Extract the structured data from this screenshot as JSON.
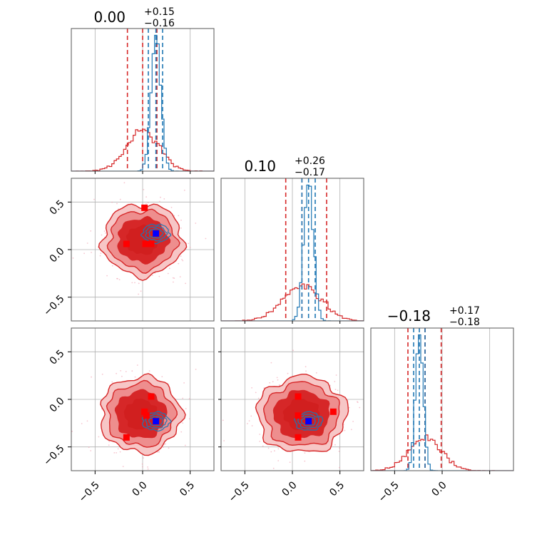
{
  "colors": {
    "posterior_a": "#d62728",
    "posterior_b": "#1f77b4",
    "truth_a": "#ff0000",
    "truth_b": "#0000ff",
    "grid": "#b0b0b0"
  },
  "chart_data": {
    "type": "corner",
    "n_params": 3,
    "axis_range": [
      -0.75,
      0.75
    ],
    "grid": true,
    "ticks": {
      "values": [
        -0.5,
        0.0,
        0.5
      ],
      "labels": [
        "−0.5",
        "0.0",
        "0.5"
      ],
      "bottom_row_labels": [
        [
          "−0.5",
          "0.0",
          "0.5"
        ],
        [
          "−0.5",
          "0.0",
          "0.5"
        ],
        [
          "−0.5",
          "0.0"
        ]
      ]
    },
    "titles": [
      {
        "value": "0.00",
        "plus": "+0.15",
        "minus": "−0.16"
      },
      {
        "value": "0.10",
        "plus": "+0.26",
        "minus": "−0.17"
      },
      {
        "value": "−0.18",
        "plus": "+0.17",
        "minus": "−0.18"
      }
    ],
    "marginals": [
      {
        "posterior_a": {
          "mean": 0.0,
          "std": 0.17,
          "quantiles": [
            -0.16,
            0.0,
            0.15
          ]
        },
        "posterior_b": {
          "mean": 0.14,
          "std": 0.05,
          "quantiles": [
            0.06,
            0.14,
            0.21
          ]
        }
      },
      {
        "posterior_a": {
          "mean": 0.1,
          "std": 0.2,
          "quantiles": [
            -0.07,
            0.1,
            0.36
          ]
        },
        "posterior_b": {
          "mean": 0.17,
          "std": 0.05,
          "quantiles": [
            0.1,
            0.17,
            0.24
          ]
        }
      },
      {
        "posterior_a": {
          "mean": -0.18,
          "std": 0.17,
          "quantiles": [
            -0.36,
            -0.18,
            -0.01
          ]
        },
        "posterior_b": {
          "mean": -0.24,
          "std": 0.04,
          "quantiles": [
            -0.3,
            -0.24,
            -0.18
          ]
        }
      }
    ],
    "pairs": [
      {
        "row": 1,
        "col": 0,
        "posterior_a": {
          "center": [
            0.0,
            0.1
          ],
          "radius": [
            0.18,
            0.16
          ]
        },
        "posterior_b": {
          "center": [
            0.14,
            0.17
          ],
          "radius": [
            0.06,
            0.04
          ]
        },
        "truth_b": [
          0.14,
          0.17
        ],
        "truth_a": [
          [
            -0.17,
            0.06
          ],
          [
            0.02,
            0.44
          ],
          [
            0.03,
            0.06
          ],
          [
            0.09,
            0.06
          ]
        ]
      },
      {
        "row": 2,
        "col": 0,
        "posterior_a": {
          "center": [
            -0.02,
            -0.16
          ],
          "radius": [
            0.18,
            0.17
          ]
        },
        "posterior_b": {
          "center": [
            0.14,
            -0.23
          ],
          "radius": [
            0.06,
            0.04
          ]
        },
        "truth_b": [
          0.14,
          -0.23
        ],
        "truth_a": [
          [
            -0.17,
            -0.4
          ],
          [
            0.02,
            -0.13
          ],
          [
            0.04,
            -0.17
          ],
          [
            0.09,
            0.03
          ]
        ]
      },
      {
        "row": 2,
        "col": 1,
        "posterior_a": {
          "center": [
            0.1,
            -0.16
          ],
          "radius": [
            0.2,
            0.17
          ]
        },
        "posterior_b": {
          "center": [
            0.17,
            -0.23
          ],
          "radius": [
            0.06,
            0.04
          ]
        },
        "truth_b": [
          0.17,
          -0.23
        ],
        "truth_a": [
          [
            0.06,
            -0.4
          ],
          [
            0.06,
            -0.17
          ],
          [
            0.06,
            0.03
          ],
          [
            0.43,
            -0.13
          ]
        ]
      }
    ]
  }
}
